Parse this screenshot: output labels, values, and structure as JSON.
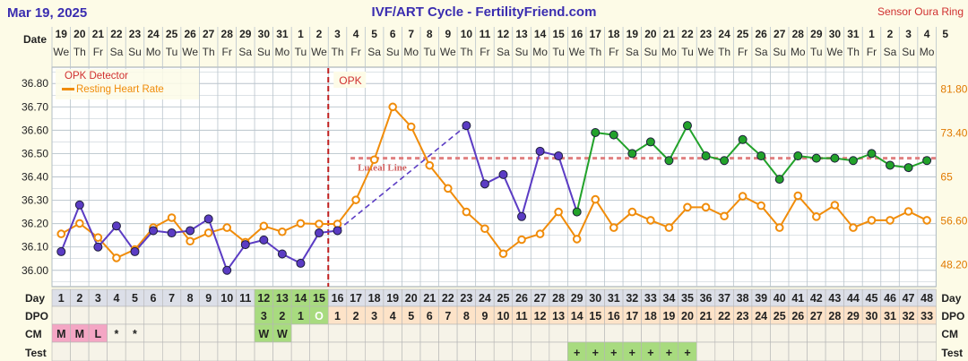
{
  "header": {
    "date": "Mar 19, 2025",
    "title": "IVF/ART Cycle - FertilityFriend.com",
    "sensor": "Sensor Oura Ring"
  },
  "labels": {
    "date_row": "Date",
    "day_row": "Day",
    "dpo_row": "DPO",
    "cm_row": "CM",
    "test_row": "Test"
  },
  "chart_data": {
    "type": "line",
    "ylabel_left": "",
    "ylabel_right": "",
    "ylim_left": [
      35.93,
      36.87
    ],
    "left_ticks": [
      "36.80",
      "36.70",
      "36.60",
      "36.50",
      "36.40",
      "36.30",
      "36.20",
      "36.10",
      "36.00"
    ],
    "right_ticks": [
      "81.80",
      "73.40",
      "65",
      "56.60",
      "48.20"
    ],
    "dates": [
      "19",
      "20",
      "21",
      "22",
      "23",
      "24",
      "25",
      "26",
      "27",
      "28",
      "29",
      "30",
      "31",
      "1",
      "2",
      "3",
      "4",
      "5",
      "6",
      "7",
      "8",
      "9",
      "10",
      "11",
      "12",
      "13",
      "14",
      "15",
      "16",
      "17",
      "18",
      "19",
      "20",
      "21",
      "22",
      "23",
      "24",
      "25",
      "26",
      "27",
      "28",
      "29",
      "30",
      "31",
      "1",
      "2",
      "3",
      "4",
      "5"
    ],
    "weekdays": [
      "We",
      "Th",
      "Fr",
      "Sa",
      "Su",
      "Mo",
      "Tu",
      "We",
      "Th",
      "Fr",
      "Sa",
      "Su",
      "Mo",
      "Tu",
      "We",
      "Th",
      "Fr",
      "Sa",
      "Su",
      "Mo",
      "Tu",
      "We",
      "Th",
      "Fr",
      "Sa",
      "Su",
      "Mo",
      "Tu",
      "We",
      "Th",
      "Fr",
      "Sa",
      "Su",
      "Mo",
      "Tu",
      "We",
      "Th",
      "Fr",
      "Sa",
      "Su",
      "Mo",
      "Tu",
      "We",
      "Th",
      "Fr",
      "Sa",
      "Su",
      "Mo"
    ],
    "days": [
      "1",
      "2",
      "3",
      "4",
      "5",
      "6",
      "7",
      "8",
      "9",
      "10",
      "11",
      "12",
      "13",
      "14",
      "15",
      "16",
      "17",
      "18",
      "19",
      "20",
      "21",
      "22",
      "23",
      "24",
      "25",
      "26",
      "27",
      "28",
      "29",
      "30",
      "31",
      "32",
      "33",
      "34",
      "35",
      "36",
      "37",
      "38",
      "39",
      "40",
      "41",
      "42",
      "43",
      "44",
      "45",
      "46",
      "47",
      "48"
    ],
    "dpo": [
      "",
      "",
      "",
      "",
      "",
      "",
      "",
      "",
      "",
      "",
      "",
      "3",
      "2",
      "1",
      "O",
      "1",
      "2",
      "3",
      "4",
      "5",
      "6",
      "7",
      "8",
      "9",
      "10",
      "11",
      "12",
      "13",
      "14",
      "15",
      "16",
      "17",
      "18",
      "19",
      "20",
      "21",
      "22",
      "23",
      "24",
      "25",
      "26",
      "27",
      "28",
      "29",
      "30",
      "31",
      "32",
      "33"
    ],
    "cm": [
      "M",
      "M",
      "L",
      "*",
      "*",
      "",
      "",
      "",
      "",
      "",
      "",
      "W",
      "W",
      "",
      "",
      "",
      "",
      "",
      "",
      "",
      "",
      "",
      "",
      "",
      "",
      "",
      "",
      "",
      "",
      "",
      "",
      "",
      "",
      "",
      "",
      "",
      "",
      "",
      "",
      "",
      "",
      "",
      "",
      "",
      "",
      "",
      "",
      ""
    ],
    "test": [
      "",
      "",
      "",
      "",
      "",
      "",
      "",
      "",
      "",
      "",
      "",
      "",
      "",
      "",
      "",
      "",
      "",
      "",
      "",
      "",
      "",
      "",
      "",
      "",
      "",
      "",
      "",
      "",
      "+",
      "+",
      "+",
      "+",
      "+",
      "+",
      "+",
      "",
      "",
      "",
      "",
      "",
      "",
      "",
      "",
      "",
      "",
      "",
      "",
      ""
    ],
    "temperatures": [
      36.08,
      36.28,
      36.1,
      36.19,
      36.08,
      36.17,
      36.16,
      36.17,
      36.22,
      36.0,
      36.11,
      36.13,
      36.07,
      36.03,
      36.16,
      36.17,
      null,
      null,
      null,
      null,
      null,
      null,
      36.62,
      36.37,
      36.41,
      36.23,
      36.51,
      36.49,
      36.25,
      36.59,
      36.58,
      36.5,
      36.55,
      36.47,
      36.62,
      36.49,
      36.47,
      36.56,
      36.49,
      36.39,
      36.49,
      36.48,
      36.48,
      36.47,
      36.5,
      36.45,
      36.44,
      36.47
    ],
    "resting_heart_rate": [
      54.1,
      56.1,
      53.4,
      49.5,
      51.1,
      55.3,
      57.2,
      52.7,
      54.3,
      55.3,
      52.5,
      55.6,
      54.5,
      56.1,
      56.0,
      56.0,
      60.6,
      68.3,
      78.4,
      74.6,
      67.2,
      62.8,
      58.3,
      55.1,
      50.3,
      53.0,
      54.1,
      58.3,
      53.1,
      60.7,
      55.3,
      58.3,
      56.7,
      55.3,
      59.2,
      59.2,
      57.5,
      61.3,
      59.5,
      55.3,
      61.4,
      57.4,
      59.6,
      55.3,
      56.7,
      56.7,
      58.4,
      56.7
    ],
    "coverline": 36.48,
    "coverline_label": "Luteal Line",
    "ovulation_day": 15,
    "opk_label": "OPK",
    "legend": [
      "OPK Detector",
      "Resting Heart Rate"
    ],
    "legend_position": "top-left",
    "grid": true,
    "colors": {
      "temp_pre": "#5b3cc4",
      "temp_post": "#22a22a",
      "rhr": "#f08c0a",
      "coverline": "#e08080",
      "ovulation": "#c02020",
      "title": "#3a2db0",
      "sensor": "#d03030",
      "grid": "#b9c4cc"
    }
  }
}
